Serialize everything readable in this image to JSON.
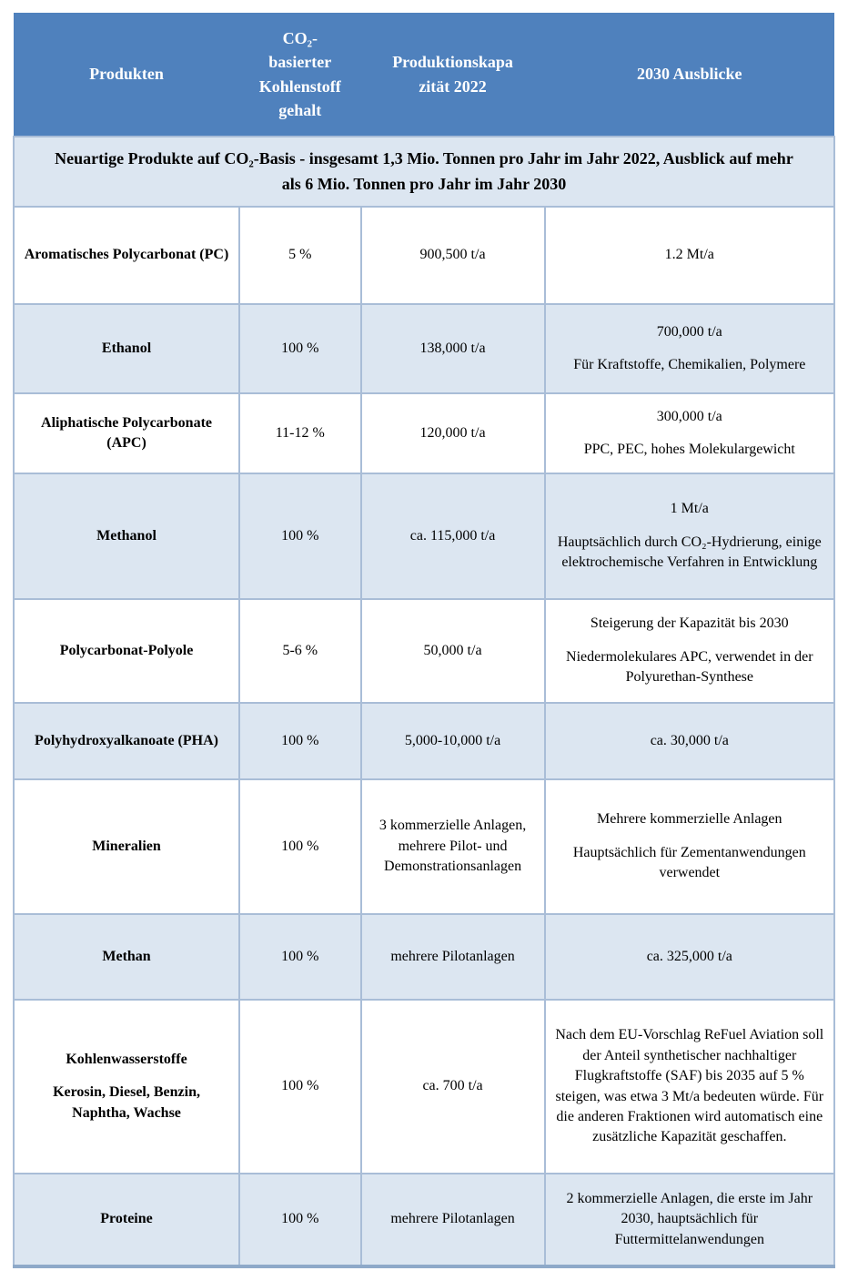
{
  "colors": {
    "header_bg": "#4F81BD",
    "header_text": "#FFFFFF",
    "band_bg": "#DCE6F1",
    "grid_border": "#A9BDD7",
    "bottom_border": "#8EA9C9",
    "body_text": "#000000"
  },
  "table": {
    "columns": [
      {
        "label": "Produkten"
      },
      {
        "label": "CO₂-\nbasierter\nKohlenstoff\ngehalt"
      },
      {
        "label": "Produktionskapa\nzität 2022"
      },
      {
        "label": "2030 Ausblicke"
      }
    ],
    "subtitle": "Neuartige Produkte auf CO₂-Basis - insgesamt 1,3 Mio. Tonnen pro Jahr im Jahr 2022, Ausblick auf mehr als 6 Mio. Tonnen pro Jahr im Jahr 2030",
    "rows": [
      {
        "product": [
          "Aromatisches Polycarbonat (PC)"
        ],
        "co2_content": "5 %",
        "capacity_2022": [
          "900,500 t/a"
        ],
        "outlook_2030": [
          "1.2 Mt/a"
        ]
      },
      {
        "product": [
          "Ethanol"
        ],
        "co2_content": "100 %",
        "capacity_2022": [
          "138,000 t/a"
        ],
        "outlook_2030": [
          "700,000 t/a",
          "Für Kraftstoffe, Chemikalien, Polymere"
        ]
      },
      {
        "product": [
          "Aliphatische Polycarbonate (APC)"
        ],
        "co2_content": "11-12 %",
        "capacity_2022": [
          "120,000 t/a"
        ],
        "outlook_2030": [
          "300,000 t/a",
          "PPC, PEC, hohes Molekulargewicht"
        ]
      },
      {
        "product": [
          "Methanol"
        ],
        "co2_content": "100 %",
        "capacity_2022": [
          "ca. 115,000 t/a"
        ],
        "outlook_2030": [
          "1 Mt/a",
          "Hauptsächlich durch CO₂-Hydrierung, einige elektrochemische Verfahren in Entwicklung"
        ]
      },
      {
        "product": [
          "Polycarbonat-Polyole"
        ],
        "co2_content": "5-6 %",
        "capacity_2022": [
          "50,000 t/a"
        ],
        "outlook_2030": [
          "Steigerung der Kapazität bis 2030",
          "Niedermolekulares APC, verwendet in der Polyurethan-Synthese"
        ]
      },
      {
        "product": [
          "Polyhydroxyalkanoate (PHA)"
        ],
        "co2_content": "100 %",
        "capacity_2022": [
          "5,000-10,000 t/a"
        ],
        "outlook_2030": [
          "ca. 30,000 t/a"
        ]
      },
      {
        "product": [
          "Mineralien"
        ],
        "co2_content": "100 %",
        "capacity_2022": [
          "3 kommerzielle Anlagen, mehrere Pilot- und Demonstrationsanlagen"
        ],
        "outlook_2030": [
          "Mehrere kommerzielle Anlagen",
          "Hauptsächlich für Zementanwendungen verwendet"
        ]
      },
      {
        "product": [
          "Methan"
        ],
        "co2_content": "100 %",
        "capacity_2022": [
          "mehrere Pilotanlagen"
        ],
        "outlook_2030": [
          "ca. 325,000 t/a"
        ]
      },
      {
        "product": [
          "Kohlenwasserstoffe",
          "Kerosin, Diesel, Benzin, Naphtha, Wachse"
        ],
        "co2_content": "100 %",
        "capacity_2022": [
          "ca. 700 t/a"
        ],
        "outlook_2030": [
          "Nach dem EU-Vorschlag ReFuel Aviation soll der Anteil synthetischer nachhaltiger Flugkraftstoffe (SAF) bis 2035 auf 5 % steigen, was etwa 3 Mt/a bedeuten würde. Für die anderen Fraktionen wird automatisch eine zusätzliche Kapazität geschaffen."
        ]
      },
      {
        "product": [
          "Proteine"
        ],
        "co2_content": "100 %",
        "capacity_2022": [
          "mehrere Pilotanlagen"
        ],
        "outlook_2030": [
          "2 kommerzielle Anlagen, die erste im Jahr 2030, hauptsächlich für Futtermittelanwendungen"
        ]
      }
    ]
  }
}
